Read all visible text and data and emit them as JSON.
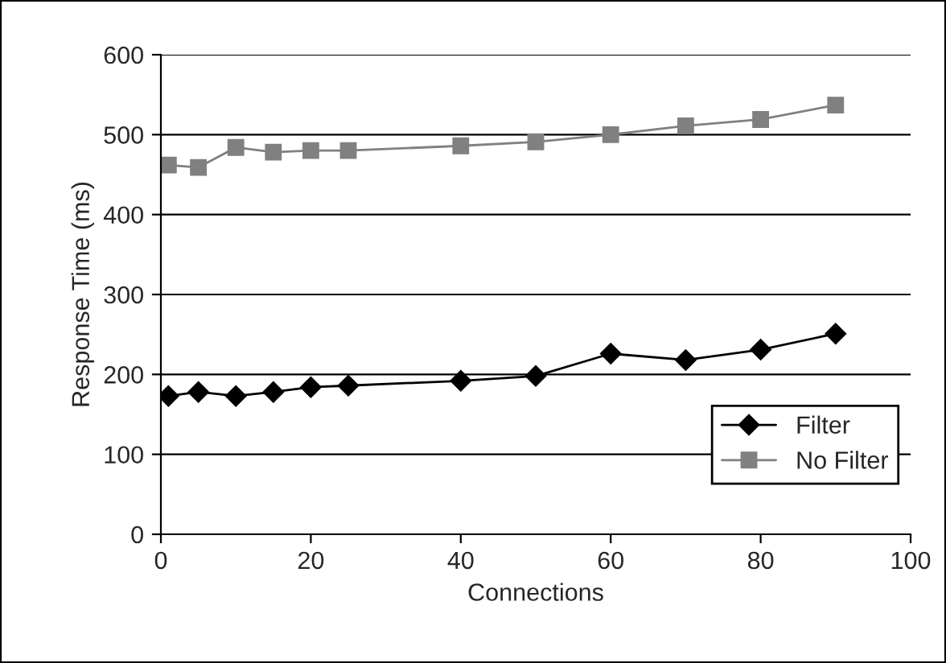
{
  "chart_data": {
    "type": "line",
    "xlabel": "Connections",
    "ylabel": "Response Time (ms)",
    "x": [
      1,
      5,
      10,
      15,
      20,
      25,
      40,
      50,
      60,
      70,
      80,
      90
    ],
    "series": [
      {
        "name": "Filter",
        "color": "#000000",
        "marker": "diamond",
        "values": [
          173,
          178,
          173,
          178,
          184,
          186,
          192,
          198,
          226,
          218,
          231,
          251
        ]
      },
      {
        "name": "No Filter",
        "color": "#808080",
        "marker": "square",
        "values": [
          462,
          459,
          484,
          478,
          480,
          480,
          486,
          491,
          500,
          511,
          519,
          537
        ]
      }
    ],
    "xlim": [
      0,
      100
    ],
    "xticks": [
      0,
      20,
      40,
      60,
      80,
      100
    ],
    "ylim": [
      0,
      600
    ],
    "yticks": [
      0,
      100,
      200,
      300,
      400,
      500,
      600
    ],
    "grid": "y",
    "legend": "bottom right",
    "line_style": "solid"
  }
}
